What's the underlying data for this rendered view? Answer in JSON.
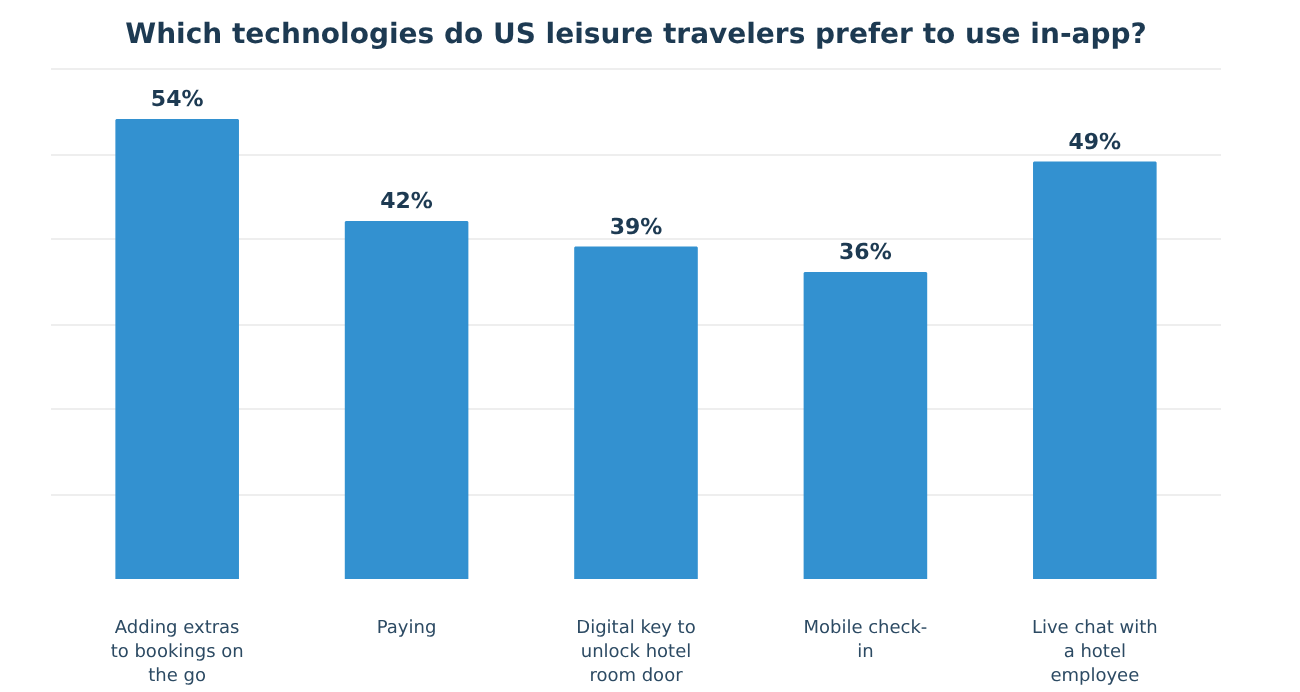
{
  "chart_data": {
    "type": "bar",
    "title": "Which technologies do US leisure travelers prefer to use in-app?",
    "categories": [
      "Adding extras to bookings on the go",
      "Paying",
      "Digital key to unlock hotel room door",
      "Mobile check-in",
      "Live chat with a hotel employee"
    ],
    "values": [
      54,
      42,
      39,
      36,
      49
    ],
    "value_labels": [
      "54%",
      "42%",
      "39%",
      "36%",
      "49%"
    ],
    "color": "#3391d0",
    "grid": "y",
    "tick_labels": "x"
  }
}
